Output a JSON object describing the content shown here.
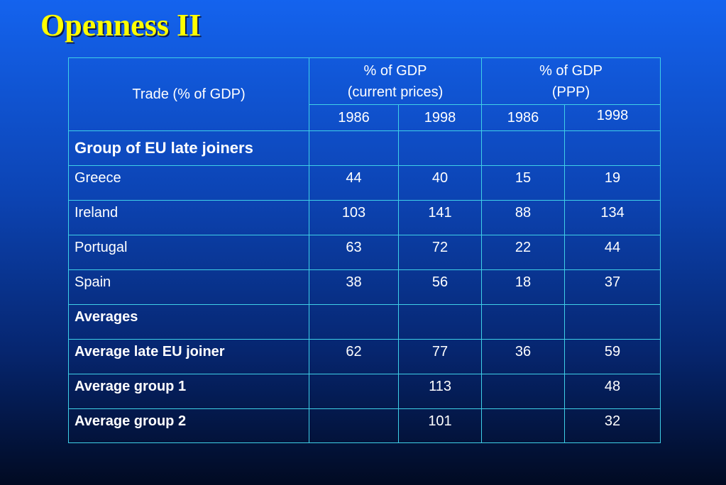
{
  "title": "Openness II",
  "table": {
    "header": {
      "row_label": "Trade (% of GDP)",
      "group1_line1": "% of GDP",
      "group1_line2": "(current prices)",
      "group2_line1": "% of GDP",
      "group2_line2": "(PPP)",
      "years": [
        "1986",
        "1998",
        "1986",
        "1998"
      ]
    },
    "section1": "Group of EU late joiners",
    "countries": [
      {
        "name": "Greece",
        "values": [
          "44",
          "40",
          "15",
          "19"
        ]
      },
      {
        "name": "Ireland",
        "values": [
          "103",
          "141",
          "88",
          "134"
        ]
      },
      {
        "name": "Portugal",
        "values": [
          "63",
          "72",
          "22",
          "44"
        ]
      },
      {
        "name": "Spain",
        "values": [
          "38",
          "56",
          "18",
          "37"
        ]
      }
    ],
    "section2": "Averages",
    "averages": [
      {
        "name": "Average late EU joiner",
        "values": [
          "62",
          "77",
          "36",
          "59"
        ]
      },
      {
        "name": "Average group 1",
        "values": [
          "",
          "113",
          "",
          "48"
        ]
      },
      {
        "name": "Average group 2",
        "values": [
          "",
          "101",
          "",
          "32"
        ]
      }
    ]
  },
  "colors": {
    "title": "#ffff00",
    "border": "#3fd0e8",
    "text": "#ffffff",
    "bg_top": "#1463ee",
    "bg_bottom": "#010a22"
  }
}
